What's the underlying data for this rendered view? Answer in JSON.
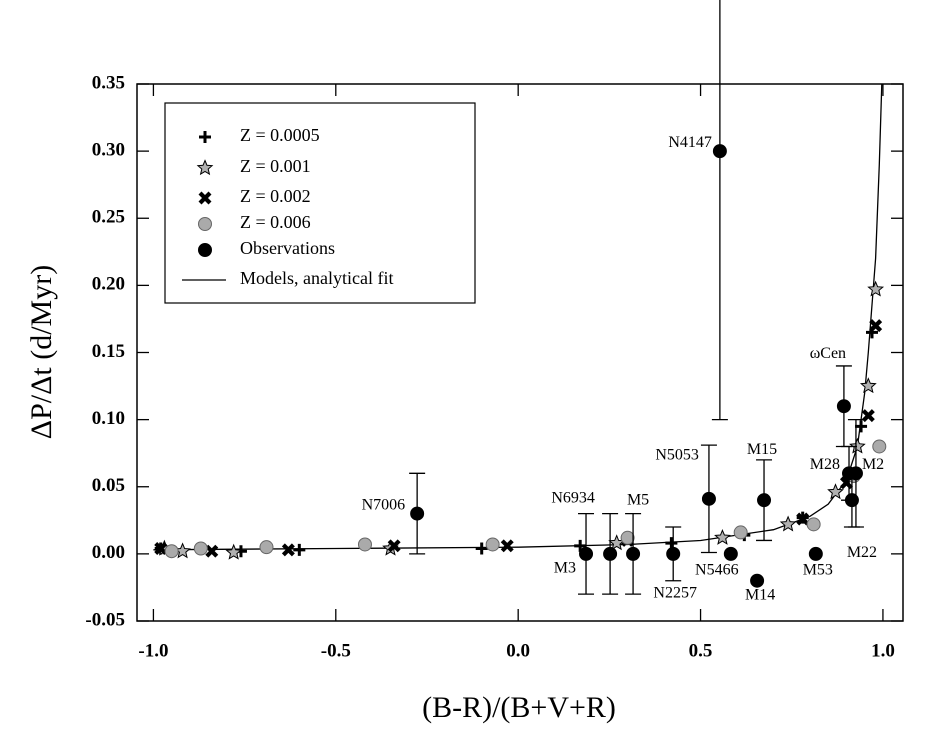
{
  "chart_data": {
    "type": "scatter",
    "xlabel": "(B-R)/(B+V+R)",
    "ylabel": "ΔP/Δt (d/Myr)",
    "xlim": [
      -1.045,
      1.055
    ],
    "ylim": [
      -0.05,
      0.35
    ],
    "xticks": [
      {
        "value": -1.0,
        "label": "-1.0"
      },
      -0.5,
      {
        "value": 0.0,
        "label": "0.0"
      },
      0.5,
      {
        "value": 1.0,
        "label": "1.0"
      }
    ],
    "yticks": [
      -0.05,
      {
        "value": 0.0,
        "label": "0.00"
      },
      0.05,
      {
        "value": 0.1,
        "label": "0.10"
      },
      0.15,
      {
        "value": 0.2,
        "label": "0.20"
      },
      0.25,
      {
        "value": 0.3,
        "label": "0.30"
      },
      0.35
    ],
    "legend": "upper left",
    "series": [
      {
        "name": "Z = 0.0005",
        "marker": "plus",
        "color": "#000000",
        "x": [
          -0.98,
          -0.76,
          -0.6,
          -0.1,
          0.17,
          0.42,
          0.62,
          0.78,
          0.94,
          0.97
        ],
        "values": [
          0.004,
          0.002,
          0.003,
          0.004,
          0.006,
          0.008,
          0.014,
          0.027,
          0.095,
          0.165
        ]
      },
      {
        "name": "Z = 0.001",
        "marker": "star",
        "color": "#b0b0b0",
        "x": [
          -0.97,
          -0.92,
          -0.78,
          -0.35,
          0.27,
          0.56,
          0.74,
          0.87,
          0.93,
          0.96,
          0.98
        ],
        "values": [
          0.004,
          0.002,
          0.001,
          0.004,
          0.008,
          0.012,
          0.022,
          0.046,
          0.08,
          0.125,
          0.197
        ]
      },
      {
        "name": "Z = 0.002",
        "marker": "cross",
        "color": "#808080",
        "x": [
          -0.98,
          -0.84,
          -0.63,
          -0.34,
          -0.03,
          0.3,
          0.78,
          0.9,
          0.96,
          0.98
        ],
        "values": [
          0.004,
          0.002,
          0.003,
          0.006,
          0.006,
          0.01,
          0.026,
          0.053,
          0.103,
          0.17
        ]
      },
      {
        "name": "Z = 0.006",
        "marker": "circle",
        "color": "#aaaaaa",
        "x": [
          -0.95,
          -0.87,
          -0.69,
          -0.42,
          -0.07,
          0.3,
          0.61,
          0.81,
          0.92,
          0.99
        ],
        "values": [
          0.002,
          0.004,
          0.005,
          0.007,
          0.007,
          0.012,
          0.016,
          0.022,
          0.058,
          0.08
        ]
      },
      {
        "name": "Observations",
        "marker": "circle",
        "color": "#000000",
        "labels": [
          "N7006",
          "N4147",
          "M3",
          "N6934",
          "M5",
          "N2257",
          "N5053",
          "N5466",
          "M14",
          "M15",
          "M53",
          "ωCen",
          "M28",
          "M2",
          "M22"
        ],
        "x": [
          -0.277,
          0.553,
          0.186,
          0.252,
          0.315,
          0.425,
          0.523,
          0.583,
          0.655,
          0.674,
          0.816,
          0.893,
          0.907,
          0.926,
          0.915
        ],
        "values": [
          0.03,
          0.3,
          0.0,
          0.0,
          0.0,
          0.0,
          0.041,
          0.0,
          -0.02,
          0.04,
          0.0,
          0.11,
          0.06,
          0.06,
          0.04
        ],
        "errors": [
          0.03,
          0.2,
          0.03,
          0.03,
          0.03,
          0.02,
          0.04,
          0,
          0,
          0.03,
          0,
          0.03,
          0.02,
          0.04,
          0.02
        ]
      },
      {
        "name": "Models, analytical fit",
        "marker": "line",
        "color": "#000000",
        "x": [
          -1.0,
          -0.5,
          0.0,
          0.3,
          0.5,
          0.7,
          0.8,
          0.85,
          0.9,
          0.93,
          0.95,
          0.96,
          0.98,
          0.99,
          0.997
        ],
        "values": [
          0.003,
          0.004,
          0.005,
          0.007,
          0.01,
          0.018,
          0.028,
          0.037,
          0.055,
          0.08,
          0.12,
          0.15,
          0.22,
          0.29,
          0.35
        ]
      }
    ]
  }
}
